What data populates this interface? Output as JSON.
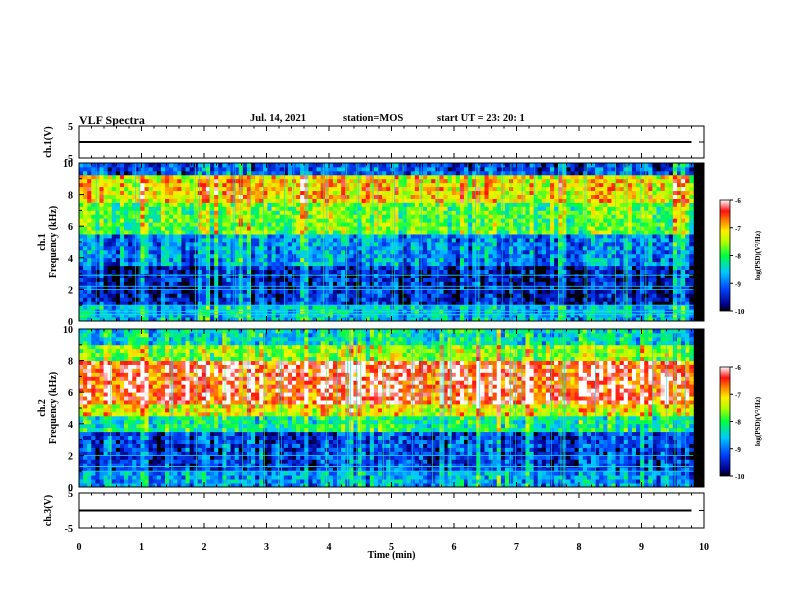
{
  "header": {
    "title": "VLF Spectra",
    "date": "Jul. 14, 2021",
    "station": "station=MOS",
    "start": "start UT = 23: 20: 1"
  },
  "chart_data": [
    {
      "type": "line",
      "panel": "ch1-waveform",
      "ylabel": "ch.1(V)",
      "ylim": [
        -5,
        5
      ],
      "y_ticks": [
        "5",
        "0",
        "-5"
      ],
      "y_tick_labels": [
        "5",
        "-5"
      ],
      "xlim": [
        0,
        10
      ],
      "series": [
        {
          "x": [
            0,
            9.8
          ],
          "values": [
            0,
            0
          ]
        }
      ]
    },
    {
      "type": "heatmap",
      "panel": "ch1-spectrogram",
      "ylabel": "ch.1\nFrequency (kHz)",
      "ylabel_lines": [
        "ch.1",
        "Frequency (kHz)"
      ],
      "ylim": [
        0,
        10
      ],
      "y_ticks": [
        "0",
        "2",
        "4",
        "6",
        "8",
        "10"
      ],
      "xlim": [
        0,
        10
      ],
      "data_extent_min": 9.83,
      "colorbar": {
        "label": "log(PSD)(V²/Hz)",
        "range": [
          -10,
          -6
        ],
        "ticks": [
          "-6",
          "-7",
          "-8",
          "-9",
          "-10"
        ]
      },
      "bands": [
        {
          "from": 0,
          "to": 1,
          "level": 0.35
        },
        {
          "from": 1,
          "to": 3.5,
          "level": 0.12
        },
        {
          "from": 3.5,
          "to": 5.5,
          "level": 0.28
        },
        {
          "from": 5.5,
          "to": 7.5,
          "level": 0.55
        },
        {
          "from": 7.5,
          "to": 9.2,
          "level": 0.72
        },
        {
          "from": 9.2,
          "to": 10,
          "level": 0.2
        }
      ],
      "hlines_khz": [
        0.4,
        0.6,
        1.0,
        2.0,
        2.2,
        2.9
      ]
    },
    {
      "type": "heatmap",
      "panel": "ch2-spectrogram",
      "ylabel": "ch.2\nFrequency (kHz)",
      "ylabel_lines": [
        "ch.2",
        "Frequency (kHz)"
      ],
      "ylim": [
        0,
        10
      ],
      "y_ticks": [
        "0",
        "2",
        "4",
        "6",
        "8",
        "10"
      ],
      "xlim": [
        0,
        10
      ],
      "data_extent_min": 9.83,
      "colorbar": {
        "label": "log(PSD)(V²/Hz)",
        "range": [
          -10,
          -6
        ],
        "ticks": [
          "-6",
          "-7",
          "-8",
          "-9",
          "-10"
        ]
      },
      "bands": [
        {
          "from": 0,
          "to": 1,
          "level": 0.3
        },
        {
          "from": 1,
          "to": 3.5,
          "level": 0.18
        },
        {
          "from": 3.5,
          "to": 4.5,
          "level": 0.45
        },
        {
          "from": 4.5,
          "to": 5.2,
          "level": 0.7
        },
        {
          "from": 5.2,
          "to": 8.0,
          "level": 0.9
        },
        {
          "from": 8.0,
          "to": 9.0,
          "level": 0.6
        },
        {
          "from": 9.0,
          "to": 10,
          "level": 0.4
        }
      ],
      "hlines_khz": [
        1.0,
        1.3,
        2.0
      ]
    },
    {
      "type": "line",
      "panel": "ch3-waveform",
      "ylabel": "ch.3(V)",
      "ylim": [
        -5,
        5
      ],
      "y_ticks": [
        "5",
        "0",
        "-5"
      ],
      "y_tick_labels": [
        "5",
        "-5"
      ],
      "xlim": [
        0,
        10
      ],
      "xlabel": "Time (min)",
      "x_ticks": [
        "0",
        "1",
        "2",
        "3",
        "4",
        "5",
        "6",
        "7",
        "8",
        "9",
        "10"
      ],
      "series": [
        {
          "x": [
            0,
            9.8
          ],
          "values": [
            0,
            0
          ]
        }
      ]
    }
  ]
}
